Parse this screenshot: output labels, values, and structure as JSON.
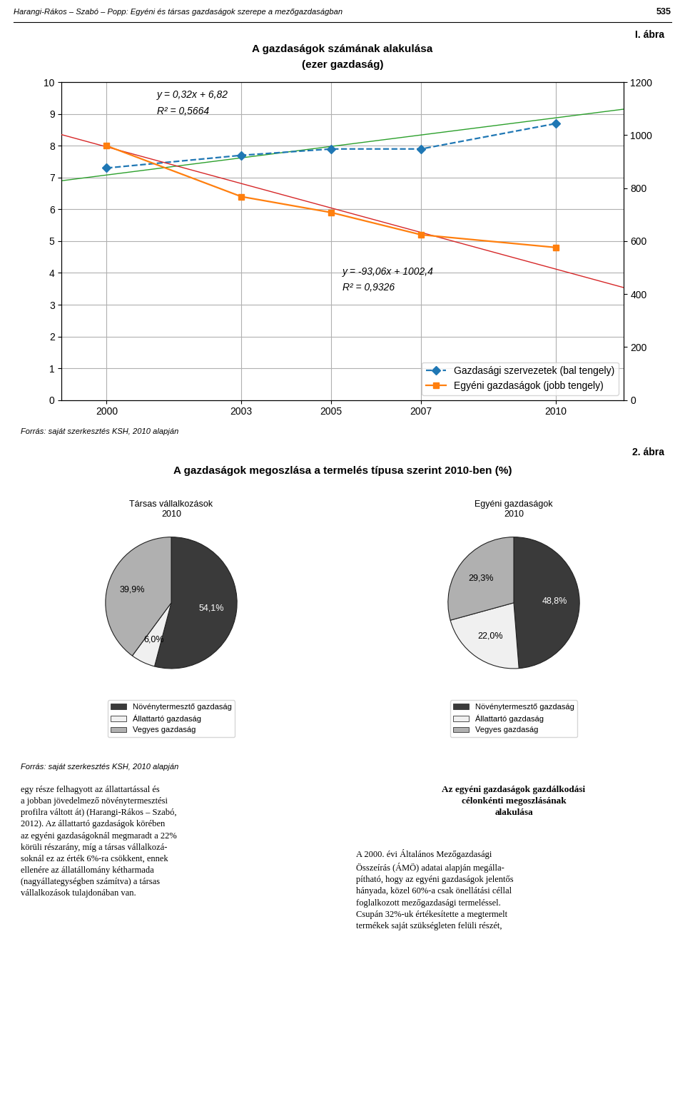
{
  "page_header": "Harangi-Rákos – Szabó – Popp: Egyéni és társas gazdaságok szerepe a mezőgazdaságban",
  "page_number": "535",
  "figure1_label": "I. ábra",
  "figure2_label": "2. ábra",
  "figure2_title": "A gazdaságok megoszlása a termelés típusa szerint 2010-ben (%)",
  "source_texts": [
    "Forrás: saját szerkesztés KSH, 2010 alapján",
    "Forrás: saját szerkesztés KSH, 2010 alapján"
  ],
  "body_text_left": "egy része felhagyott az állattartással és\na jobban jövedelmező növénytermesztési\nprofilra váltott át) (Harangi-Rákos – Szabó,\n2012). Az állattartó gazdaságok körében\naz egyéni gazdaságoknál megmaradt a 22%\nkörüli részarány, míg a társas vállalkozá-\nsoknál ez az érték 6%-ra csökkent, ennek\nellenére az állatállomány kétharmada\n(nagyállategységben számítva) a társas\nvállalkozások tulajdonában van.",
  "body_title_right": "Az egyéni gazdaságok gazdálkodási\ncélonkénti megoszlásának\nalakulása",
  "body_text_right": "A 2000. évi Általános Mezőgazdasági\nÖsszeírás (ÁMÖ) adatai alapján megálla-\npítható, hogy az egyéni gazdaságok jelentős\nhányada, közel 60%-a csak önellátási céllal\nfoglalkozott mezőgazdasági termeléssel.\nCsupán 32%-uk értékesítette a megtermelt\ntermékek saját szükségleten felüli részét,",
  "chart_data": [
    {
      "type": "line",
      "title": "A gazdaságok számának alakulása",
      "subtitle": "(ezer gazdaság)",
      "x": [
        2000,
        2003,
        2005,
        2007,
        2010
      ],
      "xlim": [
        1999.0,
        2011.5
      ],
      "xticks": [
        2000,
        2003,
        2005,
        2007,
        2010
      ],
      "ylim": [
        0,
        10
      ],
      "yticks": [
        0,
        1,
        2,
        3,
        4,
        5,
        6,
        7,
        8,
        9,
        10
      ],
      "y2lim": [
        0,
        1200
      ],
      "y2ticks": [
        0,
        200,
        400,
        600,
        800,
        1000,
        1200
      ],
      "grid": true,
      "legend": "lower right",
      "annotations": [
        "y = 0,32x + 6,82",
        "R² = 0,5664",
        "y = -93,06x + 1002,4",
        "R² = 0,9326"
      ],
      "series": [
        {
          "name": "Gazdasági szervezetek (bal tengely)",
          "values": [
            7.3,
            7.7,
            7.9,
            7.9,
            8.7
          ],
          "marker": "D",
          "line_style": "dashed"
        },
        {
          "name": "Egyéni gazdaságok (jobb tengely)",
          "axis": "y2",
          "values": [
            960,
            768,
            708,
            624,
            576
          ],
          "marker": "s",
          "line_style": "solid"
        },
        {
          "x": [
            1999.0,
            2011.5
          ],
          "values": [
            6.9,
            9.15
          ],
          "line_style": "solid"
        },
        {
          "x": [
            1999.0,
            2011.5
          ],
          "axis": "y2",
          "values": [
            1002,
            425
          ],
          "line_style": "solid"
        }
      ]
    },
    {
      "type": "pie",
      "title": "Társas vállalkozások\n2010",
      "categories": [
        "Növénytermesztő gazdaság",
        "Állattartó gazdaság",
        "Vegyes gazdaság"
      ],
      "values": [
        54.1,
        6.0,
        39.9
      ],
      "value_labels": [
        "54,1%",
        "6,0%",
        "39,9%"
      ],
      "colors": [
        "#3a3a3a",
        "#f0f0f0",
        "#b0b0b0"
      ],
      "data_labels": true,
      "legend": "lower center"
    },
    {
      "type": "pie",
      "title": "Egyéni gazdaságok\n2010",
      "categories": [
        "Növénytermesztő gazdaság",
        "Állattartó gazdaság",
        "Vegyes gazdaság"
      ],
      "values": [
        48.8,
        22.0,
        29.3
      ],
      "value_labels": [
        "48,8%",
        "22,0%",
        "29,3%"
      ],
      "colors": [
        "#3a3a3a",
        "#f0f0f0",
        "#b0b0b0"
      ],
      "data_labels": true,
      "legend": "lower center"
    }
  ]
}
